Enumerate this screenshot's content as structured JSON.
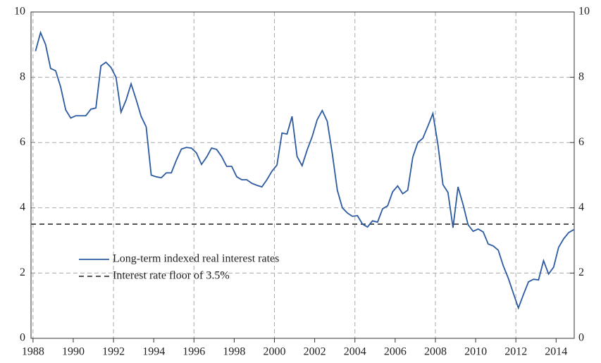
{
  "chart_data": {
    "type": "line",
    "x": [
      1988.125,
      1988.375,
      1988.625,
      1988.875,
      1989.125,
      1989.375,
      1989.625,
      1989.875,
      1990.125,
      1990.375,
      1990.625,
      1990.875,
      1991.125,
      1991.375,
      1991.625,
      1991.875,
      1992.125,
      1992.375,
      1992.625,
      1992.875,
      1993.125,
      1993.375,
      1993.625,
      1993.875,
      1994.125,
      1994.375,
      1994.625,
      1994.875,
      1995.125,
      1995.375,
      1995.625,
      1995.875,
      1996.125,
      1996.375,
      1996.625,
      1996.875,
      1997.125,
      1997.375,
      1997.625,
      1997.875,
      1998.125,
      1998.375,
      1998.625,
      1998.875,
      1999.125,
      1999.375,
      1999.625,
      1999.875,
      2000.125,
      2000.375,
      2000.625,
      2000.875,
      2001.125,
      2001.375,
      2001.625,
      2001.875,
      2002.125,
      2002.375,
      2002.625,
      2002.875,
      2003.125,
      2003.375,
      2003.625,
      2003.875,
      2004.125,
      2004.375,
      2004.625,
      2004.875,
      2005.125,
      2005.375,
      2005.625,
      2005.875,
      2006.125,
      2006.375,
      2006.625,
      2006.875,
      2007.125,
      2007.375,
      2007.625,
      2007.875,
      2008.125,
      2008.375,
      2008.625,
      2008.875,
      2009.125,
      2009.375,
      2009.625,
      2009.875,
      2010.125,
      2010.375,
      2010.625,
      2010.875,
      2011.125,
      2011.375,
      2011.625,
      2011.875,
      2012.125,
      2012.375,
      2012.625,
      2012.875,
      2013.125,
      2013.375,
      2013.625,
      2013.875,
      2014.125,
      2014.375,
      2014.625,
      2014.875
    ],
    "series": [
      {
        "name": "Long-term indexed real interest rates",
        "color": "#2c5aa0",
        "values": [
          8.8,
          9.37,
          9.0,
          8.27,
          8.2,
          7.7,
          7.0,
          6.75,
          6.82,
          6.82,
          6.82,
          7.02,
          7.06,
          8.35,
          8.46,
          8.3,
          8.0,
          6.93,
          7.3,
          7.8,
          7.32,
          6.8,
          6.48,
          5.0,
          4.95,
          4.92,
          5.07,
          5.07,
          5.46,
          5.8,
          5.85,
          5.83,
          5.68,
          5.33,
          5.55,
          5.83,
          5.79,
          5.57,
          5.27,
          5.27,
          4.95,
          4.86,
          4.86,
          4.75,
          4.69,
          4.64,
          4.86,
          5.12,
          5.31,
          6.29,
          6.26,
          6.8,
          5.57,
          5.29,
          5.77,
          6.18,
          6.7,
          6.98,
          6.65,
          5.66,
          4.54,
          4.0,
          3.84,
          3.74,
          3.76,
          3.5,
          3.41,
          3.6,
          3.56,
          3.97,
          4.06,
          4.49,
          4.67,
          4.43,
          4.54,
          5.55,
          6.0,
          6.13,
          6.5,
          6.89,
          5.94,
          4.71,
          4.47,
          3.39,
          4.64,
          4.1,
          3.48,
          3.28,
          3.35,
          3.26,
          2.89,
          2.83,
          2.7,
          2.22,
          1.84,
          1.38,
          0.93,
          1.34,
          1.73,
          1.81,
          1.79,
          2.38,
          1.97,
          2.18,
          2.79,
          3.05,
          3.24,
          3.33
        ]
      }
    ],
    "hlines": [
      {
        "name": "Interest rate floor of 3.5%",
        "value": 3.5,
        "color": "#555555",
        "dashed": true
      }
    ],
    "xlim": [
      1987.9,
      2014.9
    ],
    "xticks": [
      1988,
      1990,
      1992,
      1994,
      1996,
      1998,
      2000,
      2002,
      2004,
      2006,
      2008,
      2010,
      2012,
      2014
    ],
    "ylim": [
      0,
      10
    ],
    "yticks": [
      0,
      2,
      4,
      6,
      8,
      10
    ],
    "y2lim": [
      0,
      10
    ],
    "y2ticks": [
      0,
      2,
      4,
      6,
      8,
      10
    ],
    "grid": true
  }
}
